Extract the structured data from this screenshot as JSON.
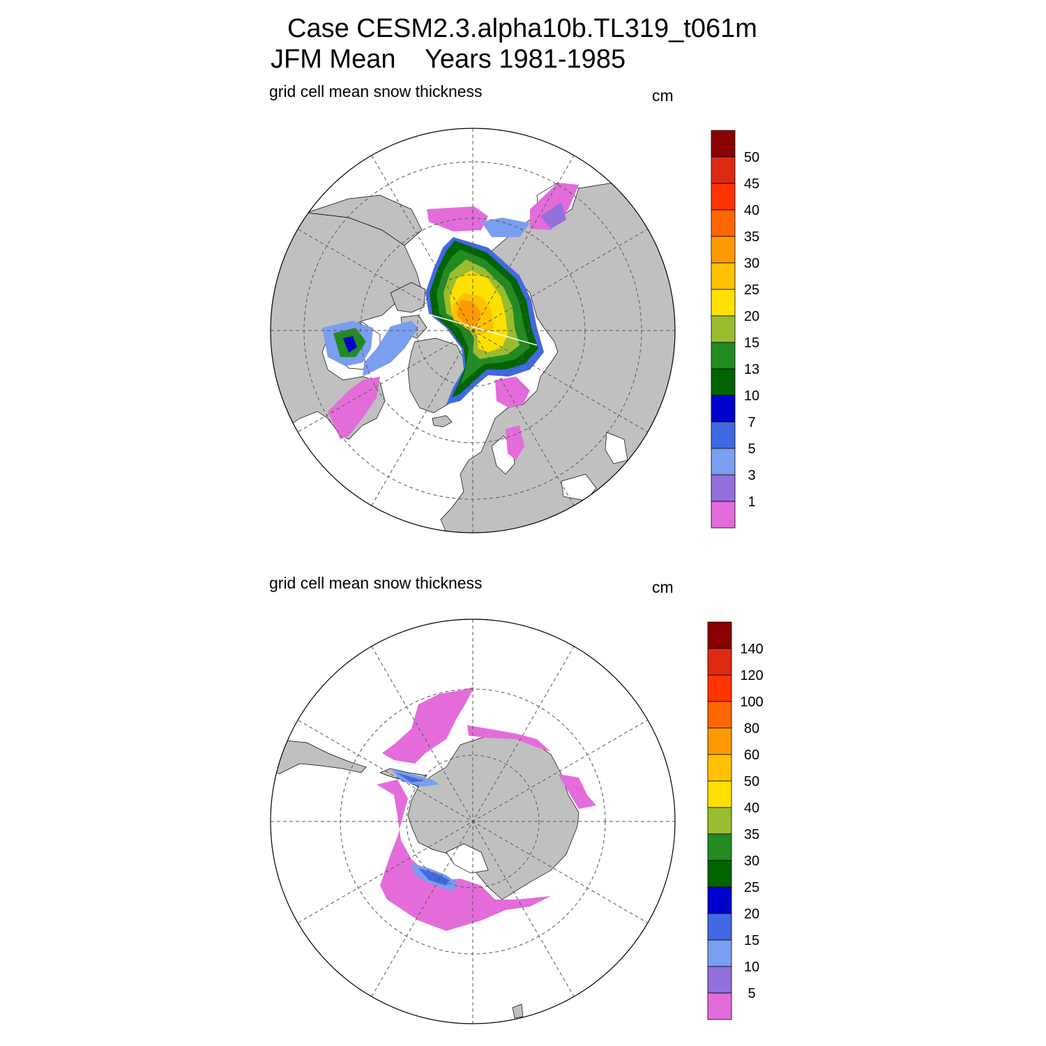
{
  "header": {
    "title_line1": "Case CESM2.3.alpha10b.TL319_t061m",
    "title_line2": "JFM Mean    Years 1981-1985"
  },
  "colors": {
    "land": "#c0c0c0",
    "ocean": "#ffffff",
    "coast": "#000000",
    "grid": "#555555"
  },
  "panels": [
    {
      "id": "north",
      "subtitle": "grid cell mean snow thickness",
      "units": "cm",
      "colorbar": {
        "labels": [
          "1",
          "3",
          "5",
          "7",
          "10",
          "13",
          "15",
          "20",
          "25",
          "30",
          "35",
          "40",
          "45",
          "50"
        ],
        "colors": [
          "#e36cda",
          "#9370db",
          "#7a9ef0",
          "#4169e1",
          "#0000cd",
          "#006400",
          "#228b22",
          "#9abd30",
          "#ffe000",
          "#ffc200",
          "#ff9900",
          "#ff6600",
          "#ff3300",
          "#dd2a13",
          "#8b0000"
        ]
      }
    },
    {
      "id": "south",
      "subtitle": "grid cell mean snow thickness",
      "units": "cm",
      "colorbar": {
        "labels": [
          "5",
          "10",
          "15",
          "20",
          "25",
          "30",
          "35",
          "40",
          "50",
          "60",
          "80",
          "100",
          "120",
          "140"
        ],
        "colors": [
          "#e36cda",
          "#9370db",
          "#7a9ef0",
          "#4169e1",
          "#0000cd",
          "#006400",
          "#228b22",
          "#9abd30",
          "#ffe000",
          "#ffc200",
          "#ff9900",
          "#ff6600",
          "#ff3300",
          "#dd2a13",
          "#8b0000"
        ]
      }
    }
  ]
}
